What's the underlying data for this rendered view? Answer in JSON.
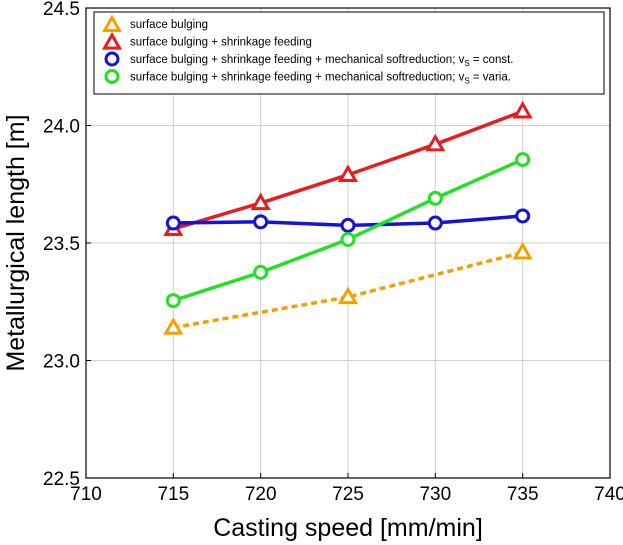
{
  "chart_data": {
    "type": "line",
    "xlabel": "Casting speed [mm/min]",
    "ylabel": "Metallurgical length [m]",
    "xlim": [
      710,
      740
    ],
    "ylim": [
      22.5,
      24.5
    ],
    "xticks": [
      "710",
      "715",
      "720",
      "725",
      "730",
      "735",
      "740"
    ],
    "yticks": [
      "22.5",
      "23.0",
      "23.5",
      "24.0",
      "24.5"
    ],
    "grid": true,
    "legend_position": "top-left",
    "series": [
      {
        "name": "surface bulging",
        "color": "#f5a000",
        "marker": "triangle",
        "line_style": "dashed",
        "x": [
          715,
          725,
          735
        ],
        "y": [
          23.14,
          23.27,
          23.46
        ]
      },
      {
        "name": "surface bulging + shrinkage feeding",
        "color": "#e81c1c",
        "marker": "triangle",
        "line_style": "solid",
        "x": [
          715,
          720,
          725,
          730,
          735
        ],
        "y": [
          23.56,
          23.67,
          23.79,
          23.92,
          24.06
        ]
      },
      {
        "name": "surface bulging + shrinkage feeding + mechanical softreduction; vS = const.",
        "color": "#1414d2",
        "marker": "circle",
        "line_style": "solid",
        "x": [
          715,
          720,
          725,
          730,
          735
        ],
        "y": [
          23.585,
          23.59,
          23.575,
          23.585,
          23.615
        ]
      },
      {
        "name": "surface bulging + shrinkage feeding + mechanical softreduction; vS = varia.",
        "color": "#22e022",
        "marker": "circle",
        "line_style": "solid",
        "x": [
          715,
          720,
          725,
          730,
          735
        ],
        "y": [
          23.255,
          23.375,
          23.515,
          23.69,
          23.855
        ]
      }
    ]
  },
  "legend": {
    "items": [
      {
        "main": "surface bulging"
      },
      {
        "main": "surface bulging + shrinkage feeding"
      },
      {
        "main": "surface bulging + shrinkage feeding + mechanical softreduction; v",
        "sub": "S",
        "tail": " = const."
      },
      {
        "main": "surface bulging + shrinkage feeding + mechanical softreduction; v",
        "sub": "S",
        "tail": " = varia."
      }
    ]
  }
}
